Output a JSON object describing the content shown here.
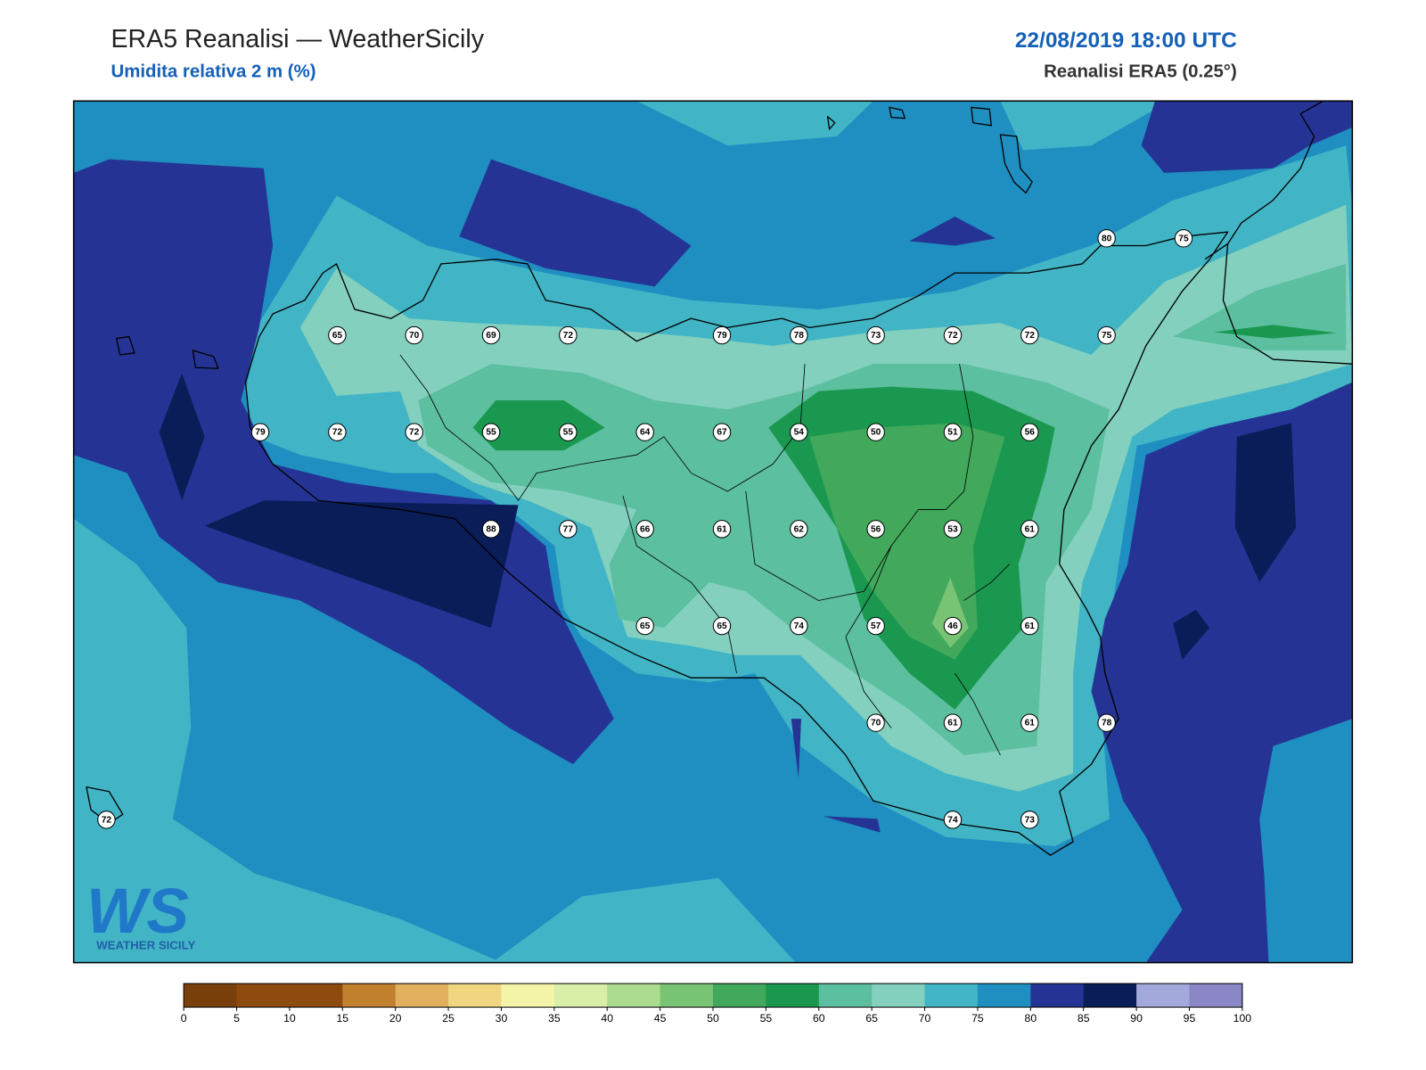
{
  "header": {
    "title": "ERA5 Reanalisi — WeatherSicily",
    "subtitle": "Umidita relativa 2 m (%)",
    "datetime": "22/08/2019 18:00 UTC",
    "source": "Reanalisi ERA5 (0.25°)"
  },
  "stations": {
    "rows": [
      [
        null,
        null,
        null,
        null,
        null,
        null,
        null,
        null,
        null,
        null,
        null,
        null,
        null,
        80,
        75
      ],
      [
        null,
        null,
        null,
        65,
        70,
        69,
        72,
        null,
        79,
        78,
        73,
        72,
        72,
        75,
        null
      ],
      [
        null,
        null,
        79,
        72,
        72,
        55,
        55,
        64,
        67,
        54,
        50,
        51,
        56,
        null,
        null
      ],
      [
        null,
        null,
        null,
        null,
        null,
        88,
        77,
        66,
        61,
        62,
        56,
        53,
        61,
        null,
        null
      ],
      [
        null,
        null,
        null,
        null,
        null,
        null,
        null,
        65,
        65,
        74,
        57,
        46,
        61,
        null,
        null
      ],
      [
        null,
        null,
        null,
        null,
        null,
        null,
        null,
        null,
        null,
        null,
        70,
        61,
        61,
        78,
        null
      ],
      [
        72,
        null,
        null,
        null,
        null,
        null,
        null,
        null,
        null,
        null,
        null,
        74,
        73,
        null,
        null
      ]
    ]
  },
  "colorbar": {
    "ticks": [
      0,
      5,
      10,
      15,
      20,
      25,
      30,
      35,
      40,
      45,
      50,
      55,
      60,
      65,
      70,
      75,
      80,
      85,
      90,
      95,
      100
    ],
    "colors": [
      "#7a400c",
      "#8e4b10",
      "#8e4b10",
      "#c0802d",
      "#e0b05e",
      "#f0d680",
      "#f5f5aa",
      "#d9eea9",
      "#acdc8f",
      "#79c474",
      "#42a85b",
      "#1a9850",
      "#5cbf9f",
      "#83d0bf",
      "#41b5c5",
      "#1f8fc2",
      "#253494",
      "#0a1d58",
      "#a3aadb",
      "#8b87c6"
    ]
  },
  "logo": {
    "mark": "WS",
    "name": "WEATHER SICILY"
  }
}
